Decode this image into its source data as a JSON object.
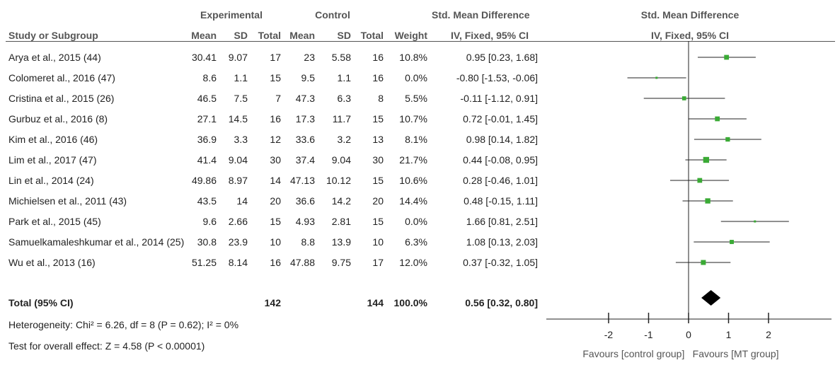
{
  "headers": {
    "experimental": "Experimental",
    "control": "Control",
    "smd_top": "Std. Mean Difference",
    "smd_plot_top": "Std. Mean Difference",
    "study": "Study or Subgroup",
    "mean_e": "Mean",
    "sd_e": "SD",
    "total_e": "Total",
    "mean_c": "Mean",
    "sd_c": "SD",
    "total_c": "Total",
    "weight": "Weight",
    "smd_sub": "IV, Fixed, 95% CI",
    "smd_plot_sub": "IV, Fixed, 95% CI"
  },
  "studies": [
    {
      "name": "Arya et al., 2015 (44)",
      "mean_e": "30.41",
      "sd_e": "9.07",
      "total_e": "17",
      "mean_c": "23",
      "sd_c": "5.58",
      "total_c": "16",
      "weight": "10.8%",
      "ci_text": "0.95 [0.23, 1.68]"
    },
    {
      "name": "Colomeret al., 2016 (47)",
      "mean_e": "8.6",
      "sd_e": "1.1",
      "total_e": "15",
      "mean_c": "9.5",
      "sd_c": "1.1",
      "total_c": "16",
      "weight": "0.0%",
      "ci_text": "-0.80 [-1.53, -0.06]"
    },
    {
      "name": "Cristina et al., 2015 (26)",
      "mean_e": "46.5",
      "sd_e": "7.5",
      "total_e": "7",
      "mean_c": "47.3",
      "sd_c": "6.3",
      "total_c": "8",
      "weight": "5.5%",
      "ci_text": "-0.11 [-1.12, 0.91]"
    },
    {
      "name": "Gurbuz et al., 2016 (8)",
      "mean_e": "27.1",
      "sd_e": "14.5",
      "total_e": "16",
      "mean_c": "17.3",
      "sd_c": "11.7",
      "total_c": "15",
      "weight": "10.7%",
      "ci_text": "0.72 [-0.01, 1.45]"
    },
    {
      "name": "Kim et al., 2016 (46)",
      "mean_e": "36.9",
      "sd_e": "3.3",
      "total_e": "12",
      "mean_c": "33.6",
      "sd_c": "3.2",
      "total_c": "13",
      "weight": "8.1%",
      "ci_text": "0.98 [0.14, 1.82]"
    },
    {
      "name": "Lim et al., 2017 (47)",
      "mean_e": "41.4",
      "sd_e": "9.04",
      "total_e": "30",
      "mean_c": "37.4",
      "sd_c": "9.04",
      "total_c": "30",
      "weight": "21.7%",
      "ci_text": "0.44 [-0.08, 0.95]"
    },
    {
      "name": "Lin et al., 2014 (24)",
      "mean_e": "49.86",
      "sd_e": "8.97",
      "total_e": "14",
      "mean_c": "47.13",
      "sd_c": "10.12",
      "total_c": "15",
      "weight": "10.6%",
      "ci_text": "0.28 [-0.46, 1.01]"
    },
    {
      "name": "Michielsen et al., 2011 (43)",
      "mean_e": "43.5",
      "sd_e": "14",
      "total_e": "20",
      "mean_c": "36.6",
      "sd_c": "14.2",
      "total_c": "20",
      "weight": "14.4%",
      "ci_text": "0.48 [-0.15, 1.11]"
    },
    {
      "name": "Park et al., 2015 (45)",
      "mean_e": "9.6",
      "sd_e": "2.66",
      "total_e": "15",
      "mean_c": "4.93",
      "sd_c": "2.81",
      "total_c": "15",
      "weight": "0.0%",
      "ci_text": "1.66 [0.81, 2.51]"
    },
    {
      "name": "Samuelkamaleshkumar et al., 2014 (25)",
      "mean_e": "30.8",
      "sd_e": "23.9",
      "total_e": "10",
      "mean_c": "8.8",
      "sd_c": "13.9",
      "total_c": "10",
      "weight": "6.3%",
      "ci_text": "1.08 [0.13, 2.03]"
    },
    {
      "name": "Wu et al., 2013 (16)",
      "mean_e": "51.25",
      "sd_e": "8.14",
      "total_e": "16",
      "mean_c": "47.88",
      "sd_c": "9.75",
      "total_c": "17",
      "weight": "12.0%",
      "ci_text": "0.37 [-0.32, 1.05]"
    }
  ],
  "total": {
    "label": "Total (95% CI)",
    "total_e": "142",
    "total_c": "144",
    "weight": "100.0%",
    "ci_text": "0.56 [0.32, 0.80]"
  },
  "footer": {
    "heterogeneity": "Heterogeneity: Chi² = 6.26, df = 8 (P = 0.62); I² = 0%",
    "overall": "Test for overall effect: Z = 4.58 (P < 0.00001)"
  },
  "chart_data": {
    "type": "forest",
    "xlim": [
      -3.5,
      3.5
    ],
    "ticks": [
      -2,
      -1,
      0,
      1,
      2
    ],
    "tick_labels": [
      "-2",
      "-1",
      "0",
      "1",
      "2"
    ],
    "favours_left": "Favours [control group]",
    "favours_right": "Favours [MT group]",
    "point_color": "#3aaa35",
    "studies": [
      {
        "est": 0.95,
        "lo": 0.23,
        "hi": 1.68,
        "weight": 10.8
      },
      {
        "est": -0.8,
        "lo": -1.53,
        "hi": -0.06,
        "weight": 0.0
      },
      {
        "est": -0.11,
        "lo": -1.12,
        "hi": 0.91,
        "weight": 5.5
      },
      {
        "est": 0.72,
        "lo": -0.01,
        "hi": 1.45,
        "weight": 10.7
      },
      {
        "est": 0.98,
        "lo": 0.14,
        "hi": 1.82,
        "weight": 8.1
      },
      {
        "est": 0.44,
        "lo": -0.08,
        "hi": 0.95,
        "weight": 21.7
      },
      {
        "est": 0.28,
        "lo": -0.46,
        "hi": 1.01,
        "weight": 10.6
      },
      {
        "est": 0.48,
        "lo": -0.15,
        "hi": 1.11,
        "weight": 14.4
      },
      {
        "est": 1.66,
        "lo": 0.81,
        "hi": 2.51,
        "weight": 0.0
      },
      {
        "est": 1.08,
        "lo": 0.13,
        "hi": 2.03,
        "weight": 6.3
      },
      {
        "est": 0.37,
        "lo": -0.32,
        "hi": 1.05,
        "weight": 12.0
      }
    ],
    "pooled": {
      "est": 0.56,
      "lo": 0.32,
      "hi": 0.8
    }
  }
}
